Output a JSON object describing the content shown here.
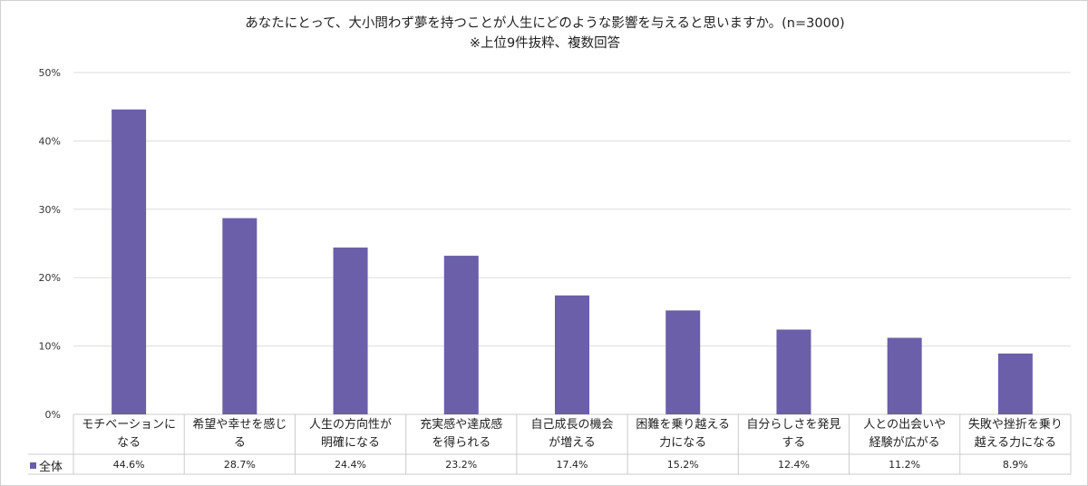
{
  "chart_data": {
    "type": "bar",
    "title": "あなたにとって、大小問わず夢を持つことが人生にどのような影響を与えると思いますか。(n=3000)",
    "subtitle": "※上位9件抜粋、複数回答",
    "categories": [
      "モチベーションに\nなる",
      "希望や幸せを感じ\nる",
      "人生の方向性が\n明確になる",
      "充実感や達成感\nを得られる",
      "自己成長の機会\nが増える",
      "困難を乗り越える\n力になる",
      "自分らしさを発見\nする",
      "人との出会いや\n経験が広がる",
      "失敗や挫折を乗り\n越える力になる"
    ],
    "series": [
      {
        "name": "全体",
        "values": [
          44.6,
          28.7,
          24.4,
          23.2,
          17.4,
          15.2,
          12.4,
          11.2,
          8.9
        ],
        "labels": [
          "44.6%",
          "28.7%",
          "24.4%",
          "23.2%",
          "17.4%",
          "15.2%",
          "12.4%",
          "11.2%",
          "8.9%"
        ],
        "color": "#6a5fa8"
      }
    ],
    "ylim": [
      0,
      50
    ],
    "yticks": [
      "0%",
      "10%",
      "20%",
      "30%",
      "40%",
      "50%"
    ],
    "grid": true,
    "legend": "data-table-left"
  }
}
